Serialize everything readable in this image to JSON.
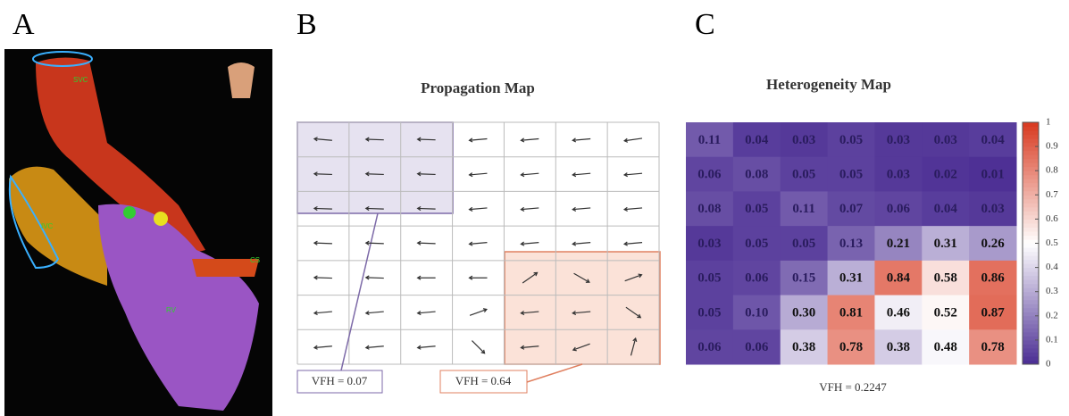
{
  "panel_labels": [
    "A",
    "B",
    "C"
  ],
  "anatomy": {
    "labels": [
      "SVC",
      "IVC",
      "CS",
      "RV"
    ]
  },
  "propagation_map": {
    "title": "Propagation Map",
    "arrow_angles": [
      [
        175,
        178,
        178,
        185,
        185,
        185,
        188
      ],
      [
        178,
        178,
        178,
        185,
        185,
        185,
        185
      ],
      [
        178,
        178,
        178,
        185,
        185,
        185,
        185
      ],
      [
        178,
        178,
        178,
        185,
        185,
        185,
        185
      ],
      [
        178,
        178,
        180,
        180,
        35,
        -30,
        20
      ],
      [
        185,
        185,
        185,
        20,
        185,
        185,
        -35
      ],
      [
        185,
        185,
        185,
        -45,
        185,
        -160,
        75
      ]
    ],
    "annotations": [
      "VFH = 0.07",
      "VFH = 0.64"
    ]
  },
  "chart_data": {
    "type": "heatmap",
    "title": "Heterogeneity Map",
    "values": [
      [
        0.11,
        0.04,
        0.03,
        0.05,
        0.03,
        0.03,
        0.04
      ],
      [
        0.06,
        0.08,
        0.05,
        0.05,
        0.03,
        0.02,
        0.01
      ],
      [
        0.08,
        0.05,
        0.11,
        0.07,
        0.06,
        0.04,
        0.03
      ],
      [
        0.03,
        0.05,
        0.05,
        0.13,
        0.21,
        0.31,
        0.26
      ],
      [
        0.05,
        0.06,
        0.15,
        0.31,
        0.84,
        0.58,
        0.86
      ],
      [
        0.05,
        0.1,
        0.3,
        0.81,
        0.46,
        0.52,
        0.87
      ],
      [
        0.06,
        0.06,
        0.38,
        0.78,
        0.38,
        0.48,
        0.78
      ]
    ],
    "value_labels": [
      [
        "0.11",
        "0.04",
        "0.03",
        "0.05",
        "0.03",
        "0.03",
        "0.04"
      ],
      [
        "0.06",
        "0.08",
        "0.05",
        "0.05",
        "0.03",
        "0.02",
        "0.01"
      ],
      [
        "0.08",
        "0.05",
        "0.11",
        "0.07",
        "0.06",
        "0.04",
        "0.03"
      ],
      [
        "0.03",
        "0.05",
        "0.05",
        "0.13",
        "0.21",
        "0.31",
        "0.26"
      ],
      [
        "0.05",
        "0.06",
        "0.15",
        "0.31",
        "0.84",
        "0.58",
        "0.86"
      ],
      [
        "0.05",
        "0.10",
        "0.30",
        "0.81",
        "0.46",
        "0.52",
        "0.87"
      ],
      [
        "0.06",
        "0.06",
        "0.38",
        "0.78",
        "0.38",
        "0.48",
        "0.78"
      ]
    ],
    "zlim": [
      0,
      1
    ],
    "zticks": [
      0,
      0.1,
      0.2,
      0.3,
      0.4,
      0.5,
      0.6,
      0.7,
      0.8,
      0.9,
      1
    ],
    "colors": [
      "#4a2c93",
      "#ffffff",
      "#d8391f"
    ],
    "xlabel": "VFH = 0.2247"
  }
}
